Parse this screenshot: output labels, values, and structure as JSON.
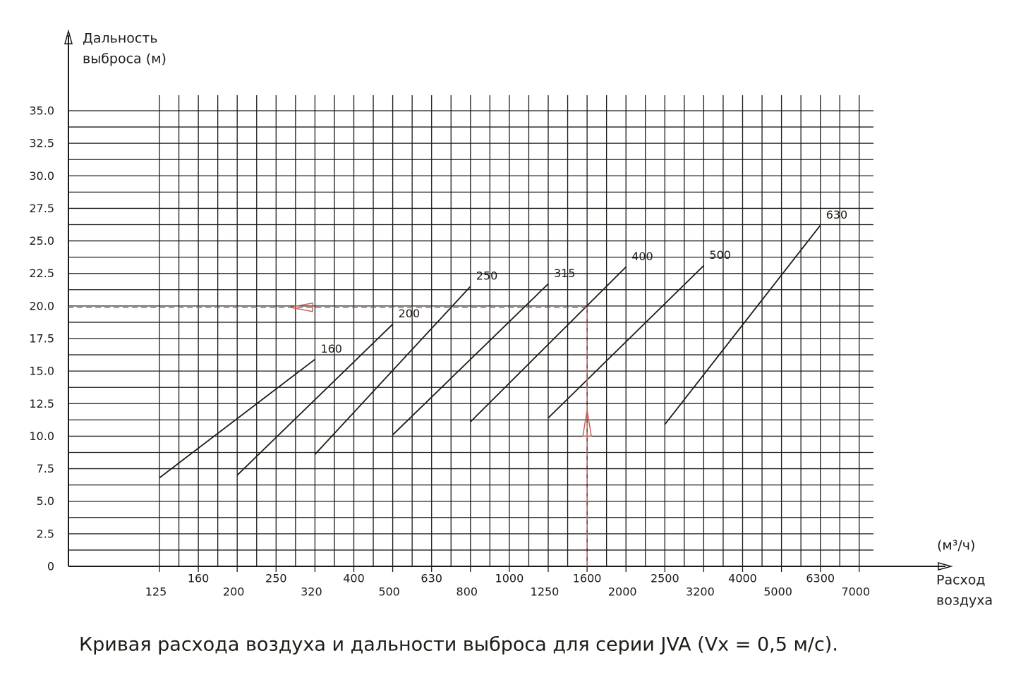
{
  "chart_data": {
    "type": "line",
    "title": "Кривая расхода воздуха и дальности выброса для серии JVA (Vx = 0,5 м/с).",
    "y_label": [
      "Дальность",
      "выброса (м)"
    ],
    "x_label": [
      "Расход",
      "воздуха"
    ],
    "x_unit": "(м³/ч)",
    "ylim": [
      0,
      35
    ],
    "yticks": [
      0,
      2.5,
      {
        "value": 5,
        "label": "5.0"
      },
      7.5,
      {
        "value": 10,
        "label": "10.0"
      },
      12.5,
      {
        "value": 15,
        "label": "15.0"
      },
      17.5,
      {
        "value": 20,
        "label": "20.0"
      },
      22.5,
      {
        "value": 25,
        "label": "25.0"
      },
      27.5,
      {
        "value": 30,
        "label": "30.0"
      },
      32.5,
      {
        "value": 35,
        "label": "35.0"
      }
    ],
    "xticks": [
      125,
      160,
      200,
      250,
      320,
      400,
      500,
      630,
      800,
      1000,
      1250,
      1600,
      2000,
      2500,
      3200,
      4000,
      5000,
      6300,
      7000
    ],
    "grid": true,
    "series": [
      {
        "name": "160",
        "color": "#1e1c17",
        "x": [
          125,
          320
        ],
        "values": [
          6.8,
          15.9
        ]
      },
      {
        "name": "200",
        "color": "#1e1c17",
        "x": [
          200,
          500
        ],
        "values": [
          7.0,
          18.6
        ]
      },
      {
        "name": "250",
        "color": "#1e1c17",
        "x": [
          320,
          800
        ],
        "values": [
          8.6,
          21.5
        ]
      },
      {
        "name": "315",
        "color": "#1e1c17",
        "x": [
          500,
          1250
        ],
        "values": [
          10.1,
          21.7
        ]
      },
      {
        "name": "400",
        "color": "#1e1c17",
        "x": [
          800,
          2000
        ],
        "values": [
          11.1,
          23.0
        ]
      },
      {
        "name": "500",
        "color": "#1e1c17",
        "x": [
          1250,
          3200
        ],
        "values": [
          11.4,
          23.1
        ]
      },
      {
        "name": "630",
        "color": "#1e1c17",
        "x": [
          2500,
          6300
        ],
        "values": [
          10.9,
          26.2
        ]
      }
    ],
    "example_point": {
      "x": 1600,
      "y": 19.9,
      "color": "#c9605a"
    }
  }
}
